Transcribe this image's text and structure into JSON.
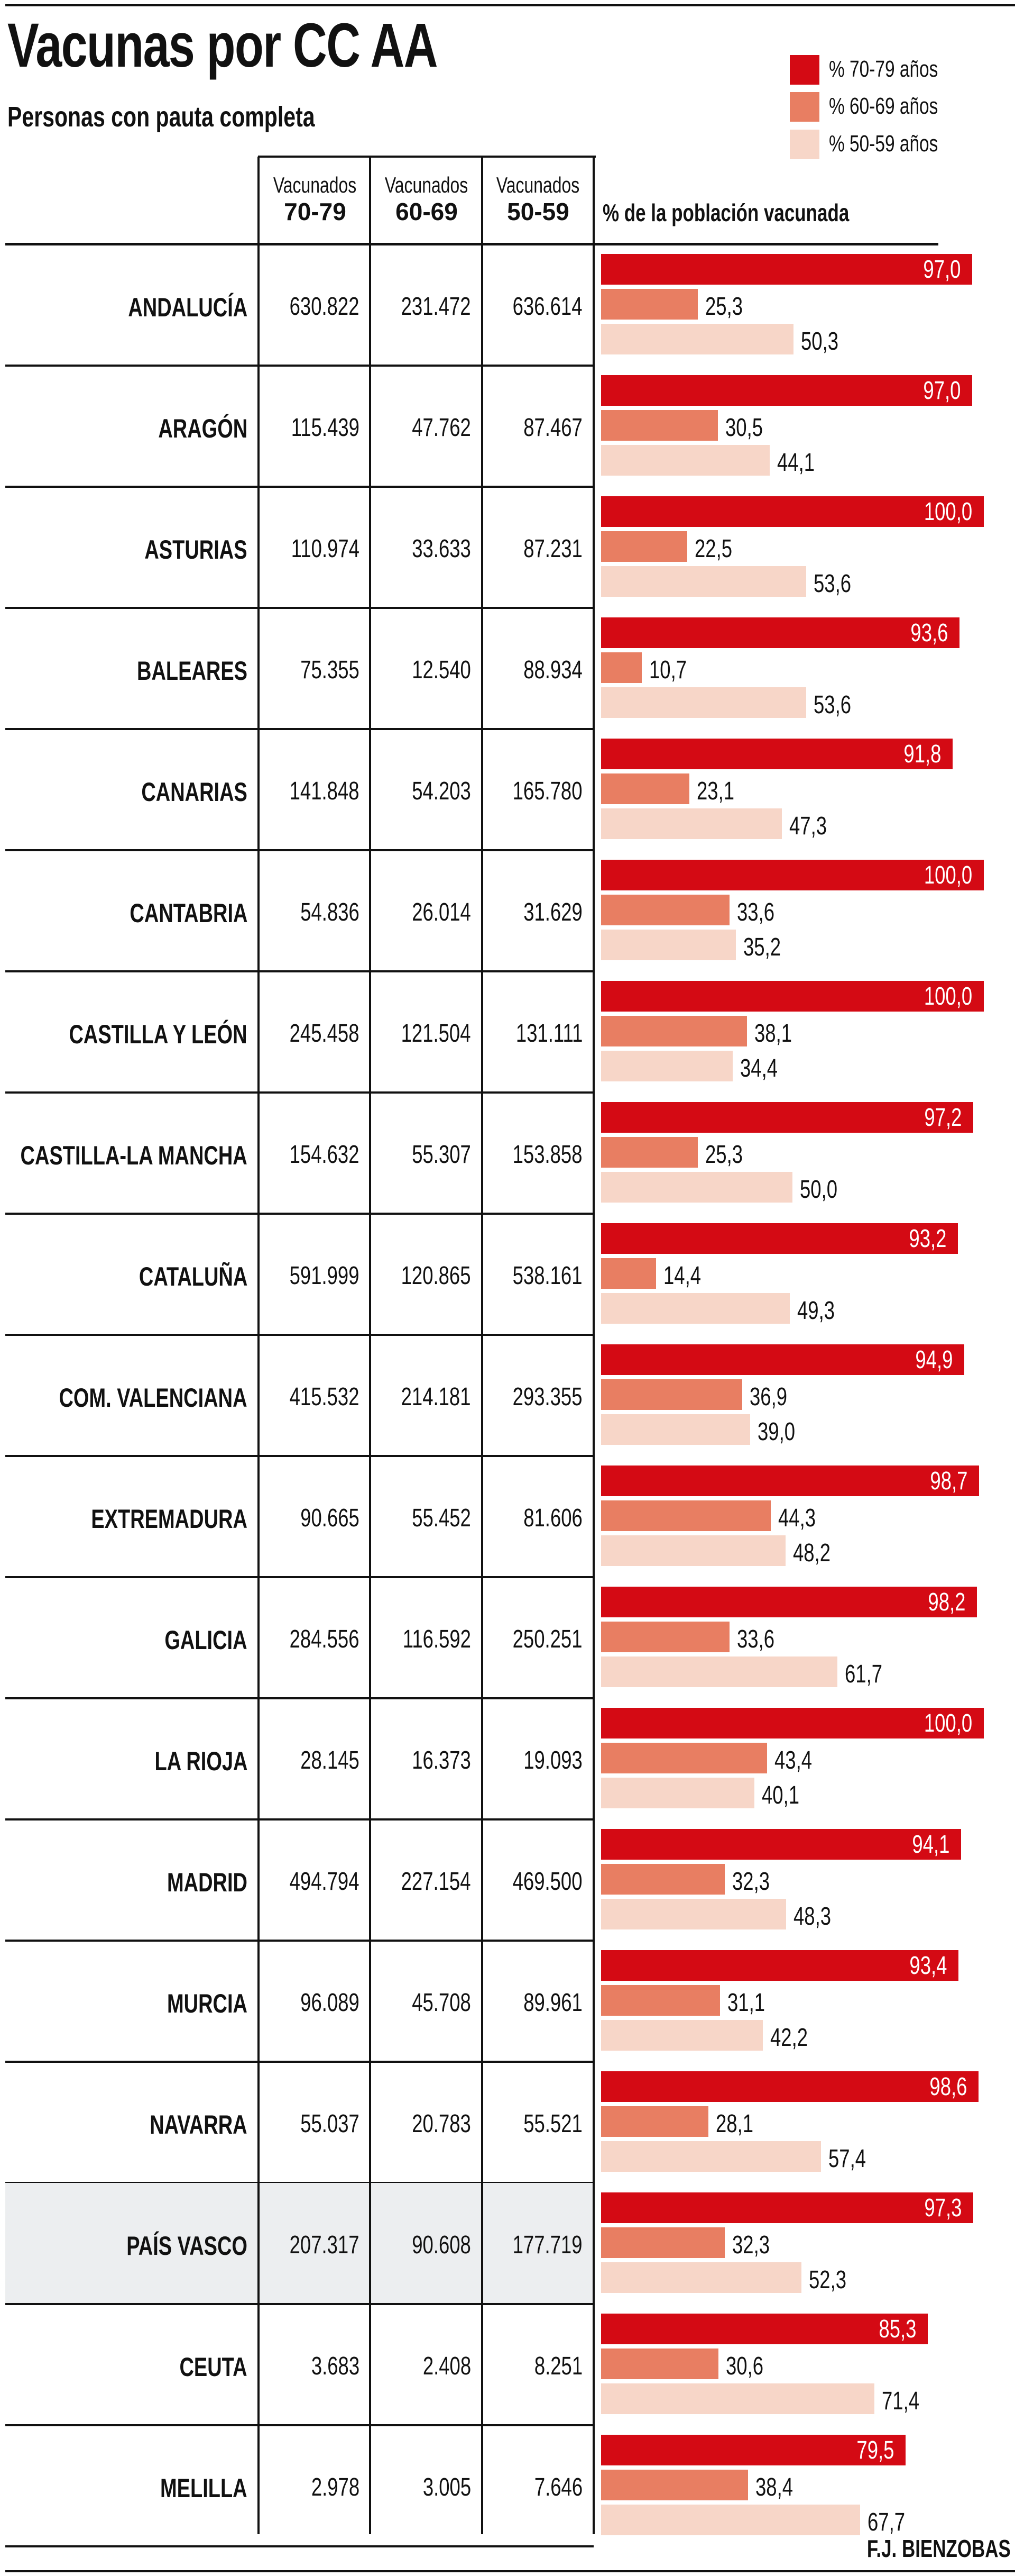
{
  "header": {
    "title": "Vacunas por CC AA",
    "subtitle": "Personas con pauta completa"
  },
  "legend": [
    {
      "label": "% 70-79 años",
      "color": "#d40a14"
    },
    {
      "label": "% 60-69 años",
      "color": "#e87e62"
    },
    {
      "label": "% 50-59 años",
      "color": "#f7d6c8"
    }
  ],
  "table": {
    "columns": [
      {
        "top": "Vacunados",
        "bottom": "70-79"
      },
      {
        "top": "Vacunados",
        "bottom": "60-69"
      },
      {
        "top": "Vacunados",
        "bottom": "50-59"
      }
    ],
    "chart_header": "% de la población vacunada",
    "rows": [
      [
        "630.822",
        "231.472",
        "636.614"
      ],
      [
        "115.439",
        "47.762",
        "87.467"
      ],
      [
        "110.974",
        "33.633",
        "87.231"
      ],
      [
        "75.355",
        "12.540",
        "88.934"
      ],
      [
        "141.848",
        "54.203",
        "165.780"
      ],
      [
        "54.836",
        "26.014",
        "31.629"
      ],
      [
        "245.458",
        "121.504",
        "131.111"
      ],
      [
        "154.632",
        "55.307",
        "153.858"
      ],
      [
        "591.999",
        "120.865",
        "538.161"
      ],
      [
        "415.532",
        "214.181",
        "293.355"
      ],
      [
        "90.665",
        "55.452",
        "81.606"
      ],
      [
        "284.556",
        "116.592",
        "250.251"
      ],
      [
        "28.145",
        "16.373",
        "19.093"
      ],
      [
        "494.794",
        "227.154",
        "469.500"
      ],
      [
        "96.089",
        "45.708",
        "89.961"
      ],
      [
        "55.037",
        "20.783",
        "55.521"
      ],
      [
        "207.317",
        "90.608",
        "177.719"
      ],
      [
        "3.683",
        "2.408",
        "8.251"
      ],
      [
        "2.978",
        "3.005",
        "7.646"
      ]
    ],
    "highlighted_row": "PAÍS VASCO",
    "highlight_color": "#eceef0"
  },
  "chart_data": {
    "type": "bar",
    "orientation": "horizontal",
    "title": "Vacunas por CC AA",
    "subtitle": "Personas con pauta completa",
    "xlabel": "% de la población vacunada",
    "xlim": [
      0,
      100
    ],
    "categories": [
      "ANDALUCÍA",
      "ARAGÓN",
      "ASTURIAS",
      "BALEARES",
      "CANARIAS",
      "CANTABRIA",
      "CASTILLA Y LEÓN",
      "CASTILLA-LA MANCHA",
      "CATALUÑA",
      "COM. VALENCIANA",
      "EXTREMADURA",
      "GALICIA",
      "LA RIOJA",
      "MADRID",
      "MURCIA",
      "NAVARRA",
      "PAÍS VASCO",
      "CEUTA",
      "MELILLA"
    ],
    "series": [
      {
        "name": "% 70-79 años",
        "color": "#d40a14",
        "values": [
          97.0,
          97.0,
          100.0,
          93.6,
          91.8,
          100.0,
          100.0,
          97.2,
          93.2,
          94.9,
          98.7,
          98.2,
          100.0,
          94.1,
          93.4,
          98.6,
          97.3,
          85.3,
          79.5
        ]
      },
      {
        "name": "% 60-69 años",
        "color": "#e87e62",
        "values": [
          25.3,
          30.5,
          22.5,
          10.7,
          23.1,
          33.6,
          38.1,
          25.3,
          14.4,
          36.9,
          44.3,
          33.6,
          43.4,
          32.3,
          31.1,
          28.1,
          32.3,
          30.6,
          38.4
        ]
      },
      {
        "name": "% 50-59 años",
        "color": "#f7d6c8",
        "values": [
          50.3,
          44.1,
          53.6,
          53.6,
          47.3,
          35.2,
          34.4,
          50.0,
          49.3,
          39.0,
          48.2,
          61.7,
          40.1,
          48.3,
          42.2,
          57.4,
          52.3,
          71.4,
          67.7
        ]
      }
    ],
    "legend_position": "top-right",
    "grid": false
  },
  "footer": {
    "credit": "F.J. BIENZOBAS"
  }
}
